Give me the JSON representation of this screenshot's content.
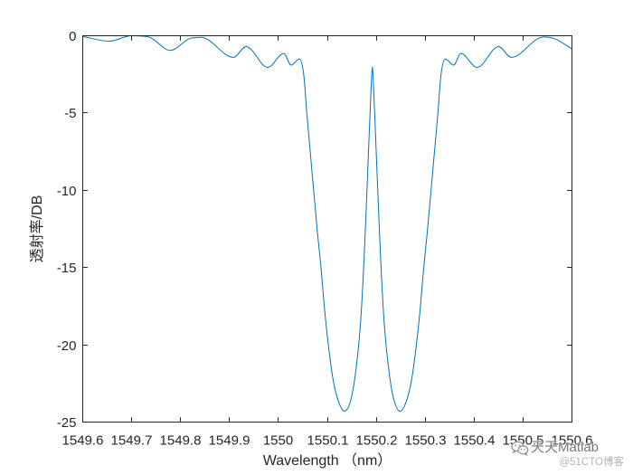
{
  "chart_data": {
    "type": "line",
    "xlabel": "Wavelength （nm）",
    "ylabel": "透射率/DB",
    "xlim": [
      1549.6,
      1550.6
    ],
    "ylim": [
      -25,
      0
    ],
    "xticks": [
      "1549.6",
      "1549.7",
      "1549.8",
      "1549.9",
      "1550",
      "1550.1",
      "1550.2",
      "1550.3",
      "1550.4",
      "1550.5",
      "1550.6"
    ],
    "yticks": [
      "0",
      "-5",
      "-10",
      "-15",
      "-20",
      "-25"
    ],
    "grid": false,
    "line_color": "#0072BD",
    "axis_color": "#262626",
    "x": [
      1549.6,
      1549.654,
      1549.7,
      1549.735,
      1549.779,
      1549.819,
      1549.842,
      1549.908,
      1549.934,
      1549.978,
      1550.011,
      1550.026,
      1550.043,
      1550.052,
      1550.058,
      1550.065,
      1550.072,
      1550.08,
      1550.087,
      1550.094,
      1550.102,
      1550.112,
      1550.122,
      1550.135,
      1550.15,
      1550.16,
      1550.168,
      1550.175,
      1550.181,
      1550.186,
      1550.19,
      1550.192,
      1550.194,
      1550.198,
      1550.203,
      1550.209,
      1550.216,
      1550.224,
      1550.234,
      1550.249,
      1550.262,
      1550.272,
      1550.282,
      1550.29,
      1550.297,
      1550.304,
      1550.312,
      1550.319,
      1550.326,
      1550.332,
      1550.341,
      1550.358,
      1550.373,
      1550.406,
      1550.45,
      1550.476,
      1550.542,
      1550.565,
      1550.6
    ],
    "y": [
      -0.05,
      -0.35,
      0,
      -0.08,
      -0.95,
      -0.18,
      -0.1,
      -1.4,
      -0.7,
      -2.05,
      -1.15,
      -1.9,
      -1.5,
      -2.6,
      -5,
      -7.5,
      -10,
      -12.8,
      -15,
      -17.6,
      -20,
      -22.3,
      -23.6,
      -24.3,
      -23.3,
      -21.2,
      -18.5,
      -14.5,
      -10,
      -6,
      -3,
      -2,
      -3,
      -6,
      -10,
      -14.5,
      -18.5,
      -21.2,
      -23.3,
      -24.3,
      -23.6,
      -22.3,
      -20,
      -17.6,
      -15,
      -12.8,
      -10,
      -7.5,
      -5,
      -2.6,
      -1.5,
      -1.9,
      -1.15,
      -2.05,
      -0.7,
      -1.4,
      -0.08,
      -0.2,
      -0.85
    ]
  },
  "watermark": {
    "icon": "wechat-icon",
    "brand": "天天Matlab",
    "source": "@51CTO博客"
  }
}
